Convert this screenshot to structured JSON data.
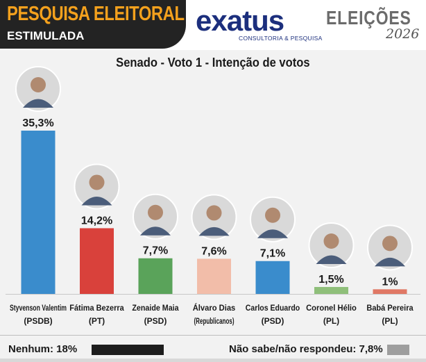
{
  "header": {
    "title_line1": "PESQUISA ELEITORAL",
    "title_line2": "ESTIMULADA",
    "logo_text_prefix": "e",
    "logo_text_x": "x",
    "logo_text_suffix": "atus",
    "logo_subtitle": "CONSULTORIA & PESQUISA",
    "election_label": "ELEIÇÕES",
    "election_year": "2026"
  },
  "colors": {
    "header_bg": "#232323",
    "header_accent": "#f4a11d",
    "logo_blue": "#1c2f7d"
  },
  "chart_data": {
    "type": "bar",
    "title": "Senado - Voto 1 - Intenção de votos",
    "categories": [
      "Styvenson Valentim",
      "Fátima Bezerra",
      "Zenaide Maia",
      "Álvaro Dias",
      "Carlos Eduardo",
      "Coronel Hélio",
      "Babá Pereira"
    ],
    "parties": [
      "(PSDB)",
      "(PT)",
      "(PSD)",
      "(Republicanos)",
      "(PSD)",
      "(PL)",
      "(PL)"
    ],
    "values": [
      35.3,
      14.2,
      7.7,
      7.6,
      7.1,
      1.5,
      1.0
    ],
    "value_labels": [
      "35,3%",
      "14,2%",
      "7,7%",
      "7,6%",
      "7,1%",
      "1,5%",
      "1%"
    ],
    "colors": [
      "#3a8ccc",
      "#d9413b",
      "#5aa35a",
      "#f2bda9",
      "#3a8ccc",
      "#8fbf7a",
      "#e07865"
    ],
    "ylim": [
      0,
      35.3
    ],
    "grid": false
  },
  "footer": {
    "none_label": "Nenhum: 18%",
    "none_value": 18,
    "dontknow_label": "Não sabe/não respondeu: 7,8%",
    "dontknow_value": 7.8
  }
}
